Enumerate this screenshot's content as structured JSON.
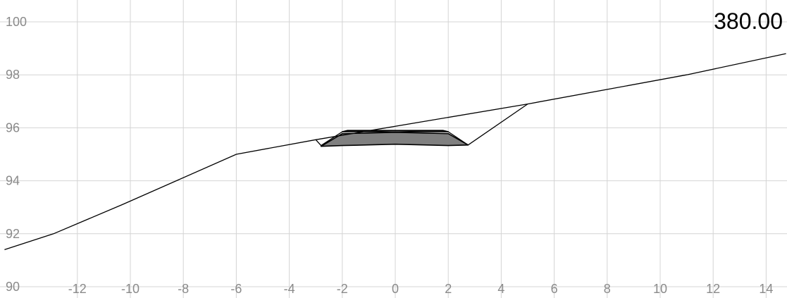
{
  "station_label": "380.00",
  "chart_data": {
    "type": "line",
    "title": "",
    "xlabel": "",
    "ylabel": "",
    "xlim": [
      -14.75,
      14.75
    ],
    "ylim": [
      90,
      100.5
    ],
    "grid": true,
    "x_ticks": [
      -12,
      -10,
      -8,
      -6,
      -4,
      -2,
      0,
      2,
      4,
      6,
      8,
      10,
      12,
      14
    ],
    "y_ticks": [
      90,
      92,
      94,
      96,
      98,
      100
    ],
    "colors": {
      "grid": "#d4d4d4",
      "line": "#000000",
      "fill_lower": "#808080",
      "fill_upper": "#a6a6a6",
      "tick_text": "#8a8a8a"
    },
    "series": [
      {
        "id": "ground",
        "points": [
          [
            -14.75,
            91.4
          ],
          [
            -12.9,
            92.0
          ],
          [
            -10.3,
            93.1
          ],
          [
            -6.0,
            95.0
          ],
          [
            -3.0,
            95.55
          ],
          [
            5.0,
            96.9
          ],
          [
            11.0,
            98.0
          ],
          [
            14.75,
            98.8
          ]
        ]
      },
      {
        "id": "design",
        "points": [
          [
            -3.0,
            95.55
          ],
          [
            -2.8,
            95.33
          ],
          [
            -2.0,
            95.85
          ],
          [
            2.0,
            95.85
          ],
          [
            2.75,
            95.35
          ],
          [
            5.0,
            96.9
          ]
        ]
      }
    ],
    "polygons": [
      {
        "id": "pavement-lower",
        "points": [
          [
            -2.8,
            95.3
          ],
          [
            -2.0,
            95.78
          ],
          [
            0.0,
            95.83
          ],
          [
            2.0,
            95.78
          ],
          [
            2.75,
            95.35
          ],
          [
            2.0,
            95.33
          ],
          [
            0.0,
            95.38
          ],
          [
            -2.0,
            95.33
          ]
        ]
      },
      {
        "id": "pavement-upper",
        "points": [
          [
            -1.8,
            95.9
          ],
          [
            1.8,
            95.9
          ],
          [
            2.0,
            95.85
          ],
          [
            0.0,
            95.9
          ],
          [
            -2.0,
            95.85
          ]
        ]
      }
    ]
  }
}
